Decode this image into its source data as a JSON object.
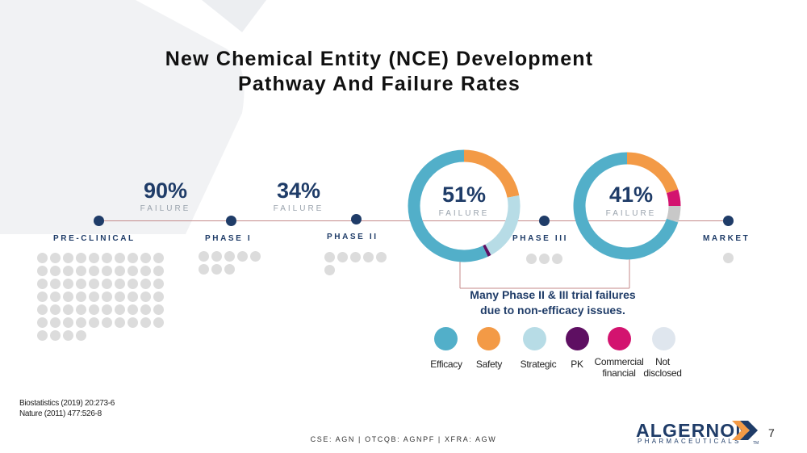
{
  "title": {
    "line1": "New Chemical Entity (NCE) Development",
    "line2": "Pathway And Failure Rates"
  },
  "stages": [
    {
      "label": "PRE-CLINICAL"
    },
    {
      "label": "PHASE I"
    },
    {
      "label": "PHASE II"
    },
    {
      "label": "PHASE III"
    },
    {
      "label": "MARKET"
    }
  ],
  "failures": {
    "preclinical": {
      "percent": "90%",
      "label": "FAILURE"
    },
    "phase1": {
      "percent": "34%",
      "label": "FAILURE"
    },
    "phase2": {
      "percent": "51%",
      "label": "FAILURE"
    },
    "phase3": {
      "percent": "41%",
      "label": "FAILURE"
    }
  },
  "dot_counts": {
    "preclinical": 64,
    "phase1": 8,
    "phase2": 6,
    "phase3": 3,
    "market": 1
  },
  "note": {
    "line1": "Many Phase II & III trial failures",
    "line2": "due to non-efficacy issues."
  },
  "legend": [
    {
      "key": "efficacy",
      "label": "Efficacy",
      "color": "#52afc9"
    },
    {
      "key": "safety",
      "label": "Safety",
      "color": "#f39a46"
    },
    {
      "key": "strategic",
      "label": "Strategic",
      "color": "#b7dce6"
    },
    {
      "key": "pk",
      "label": "PK",
      "color": "#5e0f62"
    },
    {
      "key": "commercial",
      "label": "Commercial financial",
      "color": "#d3136f"
    },
    {
      "key": "not_disclosed",
      "label": "Not disclosed",
      "color": "#dfe6ee"
    }
  ],
  "chart_data": [
    {
      "type": "pie",
      "donut": true,
      "center_label": "51%",
      "categories": [
        "Efficacy",
        "Safety",
        "Strategic",
        "PK"
      ],
      "values": [
        57,
        22,
        20,
        1
      ],
      "colors": [
        "#52afc9",
        "#f39a46",
        "#b7dce6",
        "#5e0f62"
      ]
    },
    {
      "type": "pie",
      "donut": true,
      "center_label": "41%",
      "categories": [
        "Efficacy",
        "Safety",
        "Commercial financial",
        "Not disclosed"
      ],
      "values": [
        70,
        20,
        5,
        5
      ],
      "colors": [
        "#52afc9",
        "#f39a46",
        "#d3136f",
        "#c8c8c8"
      ]
    }
  ],
  "references": {
    "line1": "Biostatistics (2019) 20:273-6",
    "line2": "Nature (2011) 477:526-8"
  },
  "footer": {
    "tickers": "CSE: AGN | OTCQB: AGNPF | XFRA: AGW",
    "page_number": "7"
  },
  "logo": {
    "name": "ALGERNON",
    "sub": "PHARMACEUTICALS",
    "tm": "TM"
  }
}
